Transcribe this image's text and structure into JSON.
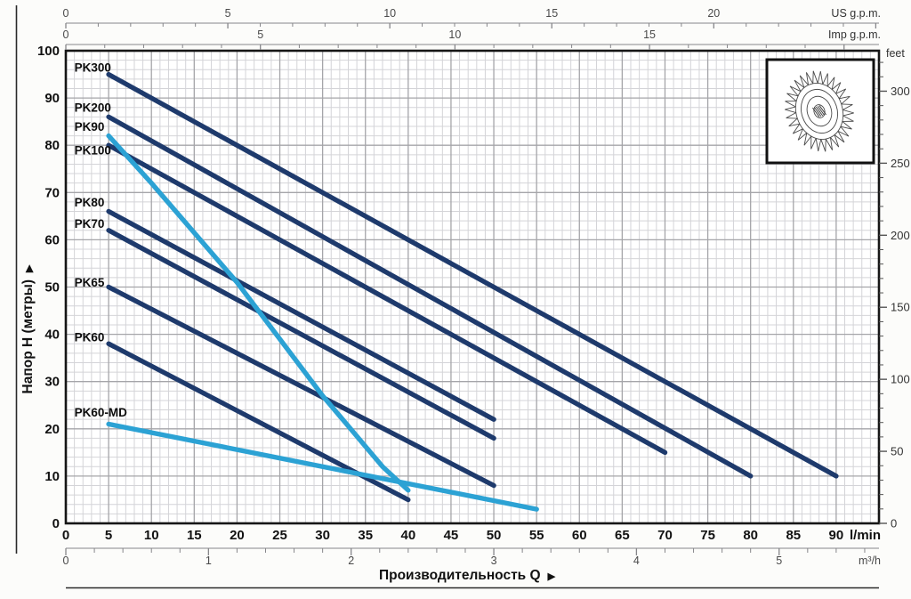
{
  "colors": {
    "navy": "#1e3a6c",
    "light_blue": "#2ca2d4",
    "grid_minor": "#d4d4d8",
    "grid_major": "#a5a5a9",
    "axis_line": "#86868a",
    "text_dark": "#111111",
    "text_gray": "#4a4a4a",
    "plot_border": "#161616",
    "page_bg": "#fcfcfa",
    "plot_bg": "#ffffff",
    "frame": "#2a2a2a",
    "inset_stroke": "#4a4a4a"
  },
  "chart_data": {
    "type": "line",
    "title": "",
    "xlabel": "Производительность Q",
    "ylabel": "Напор H (метры)",
    "axis_arrow": "▶",
    "grid": "on",
    "x_axis_lmin": {
      "unit": "l/min",
      "major_ticks": [
        0,
        5,
        10,
        15,
        20,
        25,
        30,
        35,
        40,
        45,
        50,
        55,
        60,
        65,
        70,
        75,
        80,
        85,
        90
      ],
      "minor_step": 1,
      "max": 95
    },
    "x_axis_m3h": {
      "unit": "m³/h",
      "major_ticks": [
        0,
        1,
        2,
        3,
        4,
        5
      ],
      "minor_step": 0.2,
      "minor_count": 28,
      "lmin_per_unit": 16.6667
    },
    "x_axis_us_gpm": {
      "unit": "US g.p.m.",
      "major_ticks": [
        0,
        5,
        10,
        15,
        20
      ],
      "minor_step": 1,
      "minor_count": 25,
      "lmin_per_unit": 3.785
    },
    "x_axis_imp_gpm": {
      "unit": "Imp g.p.m.",
      "major_ticks": [
        0,
        5,
        10,
        15
      ],
      "minor_step": 1,
      "minor_count": 20,
      "lmin_per_unit": 4.546
    },
    "y_axis_m": {
      "major_ticks": [
        0,
        10,
        20,
        30,
        40,
        50,
        60,
        70,
        80,
        90,
        100
      ],
      "minor_step": 2,
      "max": 100
    },
    "y_axis_feet": {
      "unit": "feet",
      "major_ticks": [
        0,
        50,
        100,
        150,
        200,
        250,
        300
      ],
      "minor_step": 10,
      "minor_count": 32,
      "m_per_unit": 0.3048
    },
    "series": [
      {
        "name": "PK300",
        "color": "navy",
        "points": [
          [
            5,
            95
          ],
          [
            90,
            10
          ]
        ],
        "label_at": [
          1.0,
          96.5
        ]
      },
      {
        "name": "PK200",
        "color": "navy",
        "points": [
          [
            5,
            86
          ],
          [
            80,
            10
          ]
        ],
        "label_at": [
          1.0,
          88.0
        ]
      },
      {
        "name": "PK90",
        "color": "light_blue",
        "points": [
          [
            5,
            82
          ],
          [
            10,
            72
          ],
          [
            20,
            51
          ],
          [
            30,
            27
          ],
          [
            37,
            12
          ],
          [
            40,
            7
          ]
        ],
        "label_at": [
          1.0,
          84.0
        ]
      },
      {
        "name": "PK100",
        "color": "navy",
        "points": [
          [
            5,
            80
          ],
          [
            70,
            15
          ]
        ],
        "label_at": [
          1.0,
          79.0
        ]
      },
      {
        "name": "PK80",
        "color": "navy",
        "points": [
          [
            5,
            66
          ],
          [
            50,
            22
          ]
        ],
        "label_at": [
          1.0,
          68.0
        ]
      },
      {
        "name": "PK70",
        "color": "navy",
        "points": [
          [
            5,
            62
          ],
          [
            50,
            18
          ]
        ],
        "label_at": [
          1.0,
          63.5
        ]
      },
      {
        "name": "PK65",
        "color": "navy",
        "points": [
          [
            5,
            50
          ],
          [
            50,
            8
          ]
        ],
        "label_at": [
          1.0,
          51.0
        ]
      },
      {
        "name": "PK60",
        "color": "navy",
        "points": [
          [
            5,
            38
          ],
          [
            40,
            5
          ]
        ],
        "label_at": [
          1.0,
          39.5
        ]
      },
      {
        "name": "PK60-MD",
        "color": "light_blue",
        "points": [
          [
            5,
            21
          ],
          [
            55,
            3
          ]
        ],
        "label_at": [
          1.0,
          23.5
        ]
      }
    ],
    "inset": {
      "description": "impeller technical drawing"
    }
  }
}
